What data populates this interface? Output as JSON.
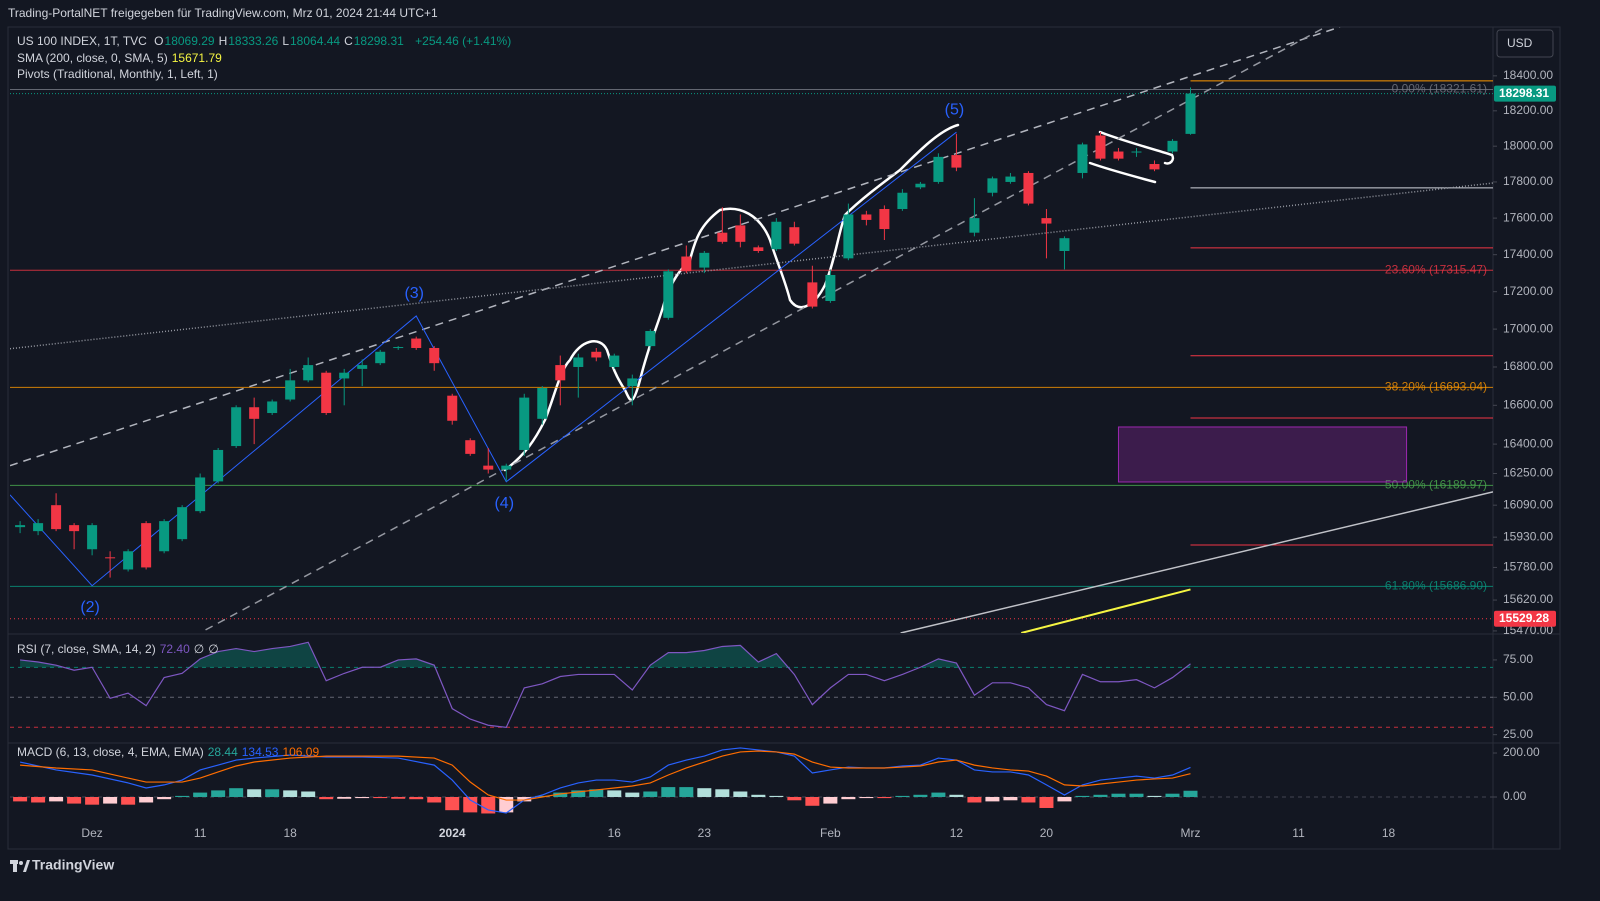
{
  "header": {
    "share": "Trading-PortalNET freigegeben für TradingView.com, Mrz 01, 2024 21:44 UTC+1",
    "logo": "TradingView",
    "currency": "USD"
  },
  "chart_data": [
    {
      "type": "candlestick",
      "title": "US 100 INDEX, 1T, TVC",
      "legend_values": [
        {
          "label": "O",
          "value": 18069.29
        },
        {
          "label": "H",
          "value": 18333.26
        },
        {
          "label": "L",
          "value": 18064.44
        },
        {
          "label": "C",
          "value": 18298.31
        }
      ],
      "change": "+254.46 (+1.41%)",
      "sma": {
        "title": "SMA (200, close, 0, SMA, 5)",
        "value": 15671.79,
        "color": "#f5f542",
        "points": [
          [
            55.6,
            15460
          ],
          [
            65,
            15671.79
          ]
        ]
      },
      "pivots_title": "Pivots (Traditional, Monthly, 1, Left, 1)",
      "up_color": "#089981",
      "down_color": "#f23645",
      "xlim": [
        -0.56,
        81.8
      ],
      "ylim": [
        15460,
        18683
      ],
      "log_scale": true,
      "yticks": [
        {
          "value": 18400,
          "label": "18400.00"
        },
        {
          "value": 18200,
          "label": "18200.00"
        },
        {
          "value": 18000,
          "label": "18000.00"
        },
        {
          "value": 17800,
          "label": "17800.00"
        },
        {
          "value": 17600,
          "label": "17600.00"
        },
        {
          "value": 17400,
          "label": "17400.00"
        },
        {
          "value": 17200,
          "label": "17200.00"
        },
        {
          "value": 17000,
          "label": "17000.00"
        },
        {
          "value": 16800,
          "label": "16800.00"
        },
        {
          "value": 16600,
          "label": "16600.00"
        },
        {
          "value": 16400,
          "label": "16400.00"
        },
        {
          "value": 16250,
          "label": "16250.00"
        },
        {
          "value": 16090,
          "label": "16090.00"
        },
        {
          "value": 15930,
          "label": "15930.00"
        },
        {
          "value": 15780,
          "label": "15780.00"
        },
        {
          "value": 15620,
          "label": "15620.00"
        },
        {
          "value": 15470,
          "label": "15470.00"
        }
      ],
      "xticks": [
        {
          "value": 4,
          "label": "Dez"
        },
        {
          "value": 10,
          "label": "11"
        },
        {
          "value": 15,
          "label": "18"
        },
        {
          "value": 24,
          "label": "2024"
        },
        {
          "value": 33,
          "label": "16"
        },
        {
          "value": 38,
          "label": "23"
        },
        {
          "value": 45,
          "label": "Feb"
        },
        {
          "value": 52,
          "label": "12"
        },
        {
          "value": 57,
          "label": "20"
        },
        {
          "value": 65,
          "label": "Mrz"
        },
        {
          "value": 71,
          "label": "11"
        },
        {
          "value": 76,
          "label": "18"
        }
      ],
      "ohlc": [
        [
          15980,
          16010,
          15950,
          15990
        ],
        [
          15960,
          16020,
          15940,
          16000
        ],
        [
          16090,
          16150,
          15960,
          15970
        ],
        [
          15990,
          16000,
          15870,
          15960
        ],
        [
          15870,
          16000,
          15840,
          15990
        ],
        [
          15830,
          15860,
          15730,
          15825
        ],
        [
          15770,
          15870,
          15760,
          15860
        ],
        [
          16000,
          16010,
          15770,
          15780
        ],
        [
          15860,
          16020,
          15850,
          16010
        ],
        [
          15920,
          16090,
          15910,
          16080
        ],
        [
          16060,
          16250,
          16050,
          16230
        ],
        [
          16210,
          16380,
          16200,
          16370
        ],
        [
          16390,
          16600,
          16380,
          16590
        ],
        [
          16590,
          16640,
          16400,
          16530
        ],
        [
          16560,
          16630,
          16550,
          16620
        ],
        [
          16630,
          16790,
          16620,
          16730
        ],
        [
          16730,
          16850,
          16720,
          16810
        ],
        [
          16770,
          16780,
          16550,
          16560
        ],
        [
          16740,
          16790,
          16600,
          16770
        ],
        [
          16790,
          16840,
          16700,
          16810
        ],
        [
          16820,
          16890,
          16810,
          16880
        ],
        [
          16900,
          16910,
          16890,
          16905
        ],
        [
          16950,
          16960,
          16890,
          16900
        ],
        [
          16900,
          16910,
          16780,
          16820
        ],
        [
          16650,
          16660,
          16500,
          16520
        ],
        [
          16420,
          16430,
          16340,
          16350
        ],
        [
          16290,
          16380,
          16250,
          16270
        ],
        [
          16270,
          16300,
          16210,
          16290
        ],
        [
          16370,
          16660,
          16340,
          16640
        ],
        [
          16530,
          16700,
          16500,
          16690
        ],
        [
          16810,
          16860,
          16600,
          16730
        ],
        [
          16800,
          16870,
          16640,
          16850
        ],
        [
          16880,
          16900,
          16830,
          16850
        ],
        [
          16800,
          16870,
          16790,
          16860
        ],
        [
          16700,
          16760,
          16600,
          16740
        ],
        [
          16910,
          17000,
          16890,
          16990
        ],
        [
          17060,
          17320,
          17050,
          17310
        ],
        [
          17390,
          17450,
          17300,
          17310
        ],
        [
          17330,
          17420,
          17300,
          17410
        ],
        [
          17520,
          17660,
          17460,
          17470
        ],
        [
          17560,
          17620,
          17440,
          17470
        ],
        [
          17440,
          17450,
          17410,
          17420
        ],
        [
          17430,
          17600,
          17420,
          17580
        ],
        [
          17550,
          17580,
          17450,
          17460
        ],
        [
          17250,
          17340,
          17110,
          17120
        ],
        [
          17150,
          17320,
          17140,
          17290
        ],
        [
          17380,
          17680,
          17370,
          17620
        ],
        [
          17620,
          17640,
          17560,
          17590
        ],
        [
          17650,
          17670,
          17480,
          17540
        ],
        [
          17650,
          17760,
          17640,
          17740
        ],
        [
          17770,
          17800,
          17760,
          17790
        ],
        [
          17800,
          17960,
          17790,
          17940
        ],
        [
          17950,
          18070,
          17860,
          17880
        ],
        [
          17520,
          17710,
          17500,
          17600
        ],
        [
          17740,
          17830,
          17720,
          17820
        ],
        [
          17800,
          17850,
          17790,
          17830
        ],
        [
          17850,
          17860,
          17670,
          17680
        ],
        [
          17600,
          17650,
          17380,
          17570
        ],
        [
          17420,
          17500,
          17320,
          17490
        ],
        [
          17850,
          18020,
          17820,
          18010
        ],
        [
          18060,
          18080,
          17920,
          17930
        ],
        [
          17970,
          17990,
          17920,
          17930
        ],
        [
          17965,
          17990,
          17940,
          17970
        ],
        [
          17900,
          17920,
          17860,
          17870
        ],
        [
          17970,
          18040,
          17960,
          18030
        ],
        [
          18069.29,
          18333.26,
          18064.44,
          18298.31
        ]
      ],
      "fib_levels": [
        {
          "label": "0.00% (18321.61)",
          "value": 18321.61,
          "color": "#787b86"
        },
        {
          "label": "23.60% (17315.47)",
          "value": 17315.47,
          "color": "#f23645"
        },
        {
          "label": "38.20% (16693.04)",
          "value": 16693.04,
          "color": "#ff9800"
        },
        {
          "label": "50.00% (16189.97)",
          "value": 16189.97,
          "color": "#4caf50"
        },
        {
          "label": "61.80% (15686.90)",
          "value": 15686.9,
          "color": "#089981"
        }
      ],
      "pivot_start": 65,
      "pivots": [
        {
          "value": 18371,
          "color": "#ff9800"
        },
        {
          "value": 17767,
          "color": "#d1d4dc"
        },
        {
          "value": 17437,
          "color": "#f23645"
        },
        {
          "value": 16859,
          "color": "#f23645"
        },
        {
          "value": 16534,
          "color": "#f23645"
        },
        {
          "value": 15891,
          "color": "#f23645"
        }
      ],
      "box": {
        "x": [
          61,
          77
        ],
        "y": [
          16207,
          16488
        ],
        "color": "#9c27b0"
      },
      "trendlines": [
        {
          "points": [
            [
              -0.56,
              16290
            ],
            [
              73.3,
              18683
            ]
          ],
          "color": "#b2b5be",
          "dash": "8 6"
        },
        {
          "points": [
            [
              10.3,
              15475
            ],
            [
              72.5,
              18683
            ]
          ],
          "color": "#9598a1",
          "dash": "8 6"
        },
        {
          "points": [
            [
              -0.56,
              16896
            ],
            [
              81.8,
              17794
            ]
          ],
          "color": "#9598a1",
          "dash": "1 2"
        },
        {
          "points": [
            [
              48.9,
              15460
            ],
            [
              81.8,
              16157
            ]
          ],
          "color": "#c0c2c8",
          "dash": "none"
        }
      ],
      "wave_points": [
        [
          -0.56,
          16142
        ],
        [
          4,
          15690
        ],
        [
          22,
          17070
        ],
        [
          27,
          16208
        ],
        [
          52,
          18079
        ]
      ],
      "wave_labels": [
        "(2)",
        "(3)",
        "(4)",
        "(5)"
      ],
      "wave_color": "#2962ff",
      "last_price": {
        "value": 18298.31,
        "color": "#089981"
      },
      "level_tag": {
        "value": 15529.28,
        "color": "#f23645"
      }
    },
    {
      "type": "line",
      "title": "RSI (7, close, SMA, 14, 2)",
      "readout": {
        "value": 72.4,
        "label": "72.40"
      },
      "extra": [
        "∅",
        "∅"
      ],
      "color": "#7e57c2",
      "ylim": [
        20.1,
        91
      ],
      "yticks": [
        {
          "value": 75,
          "label": "75.00"
        },
        {
          "value": 50,
          "label": "50.00"
        },
        {
          "value": 25,
          "label": "25.00"
        }
      ],
      "bands": [
        {
          "value": 70,
          "color": "#089981"
        },
        {
          "value": 50,
          "color": "#787b86"
        },
        {
          "value": 30,
          "color": "#f23645"
        }
      ],
      "values": [
        75,
        73.6,
        71.5,
        68.1,
        70.1,
        49.3,
        52.8,
        44.4,
        63.2,
        66,
        75.7,
        80.6,
        82.6,
        80.6,
        82.6,
        84,
        86.8,
        61.1,
        66,
        70.1,
        70.1,
        75,
        75.7,
        71.5,
        42.4,
        35.4,
        31.3,
        29.9,
        56.3,
        59,
        63.9,
        65.3,
        65.3,
        65.3,
        54.9,
        71.5,
        79.9,
        79.9,
        81.3,
        84,
        84.7,
        73.6,
        79.2,
        65.3,
        45.1,
        56.3,
        65.3,
        65.3,
        61.1,
        65.3,
        70.1,
        75.7,
        72.9,
        51.4,
        59.7,
        59.7,
        56.3,
        45.1,
        41,
        65.3,
        60.4,
        60.4,
        61.8,
        56.3,
        63.2,
        72.4
      ]
    },
    {
      "type": "macd",
      "title": "MACD (6, 13, close, 4, EMA, EMA)",
      "ylim": [
        -232,
        241
      ],
      "yticks": [
        {
          "value": 200,
          "label": "200.00"
        },
        {
          "value": 0,
          "label": "0.00"
        }
      ],
      "histogram": {
        "readout": 28.44,
        "colors": [
          "#26a69a",
          "#b2dfdb",
          "#ff5252",
          "#ffcdd2"
        ],
        "values": [
          -20,
          -25,
          -20,
          -30,
          -35,
          -30,
          -35,
          -25,
          -10,
          5,
          20,
          30,
          40,
          35,
          35,
          30,
          25,
          -10,
          -8,
          -5,
          -5,
          -8,
          -10,
          -25,
          -60,
          -70,
          -75,
          -70,
          -20,
          5,
          20,
          30,
          35,
          30,
          20,
          25,
          45,
          45,
          40,
          35,
          25,
          10,
          5,
          -15,
          -40,
          -30,
          -10,
          -5,
          -5,
          5,
          10,
          20,
          10,
          -25,
          -20,
          -15,
          -25,
          -50,
          -20,
          5,
          10,
          15,
          15,
          5,
          15,
          28.44
        ]
      },
      "x": [
        0,
        2,
        4,
        6,
        7,
        8,
        9,
        10,
        11,
        12,
        13,
        15,
        17,
        19,
        21,
        23,
        24,
        25,
        26,
        27,
        28,
        29,
        30,
        31,
        32,
        33,
        34,
        35,
        36,
        37,
        38,
        39,
        40,
        41,
        42,
        43,
        44,
        45,
        46,
        47,
        48,
        49,
        50,
        51,
        52,
        53,
        54,
        55,
        56,
        57,
        58,
        59,
        60,
        61,
        62,
        63,
        64,
        65
      ],
      "series": [
        {
          "name": "MACD",
          "color": "#2962ff",
          "readout": 134.53,
          "values": [
            159,
            123,
            100,
            64,
            41,
            55,
            77,
            123,
            145,
            168,
            177,
            191,
            182,
            182,
            177,
            145,
            77,
            -14,
            -59,
            -73,
            -14,
            9,
            41,
            64,
            77,
            77,
            68,
            91,
            145,
            168,
            186,
            214,
            223,
            214,
            205,
            186,
            109,
            123,
            136,
            132,
            132,
            141,
            145,
            177,
            168,
            123,
            114,
            114,
            100,
            55,
            9,
            55,
            77,
            86,
            95,
            86,
            100,
            134.53
          ]
        },
        {
          "name": "Signal",
          "color": "#ff6d00",
          "readout": 106.09,
          "values": [
            145,
            132,
            123,
            86,
            68,
            68,
            68,
            86,
            114,
            141,
            159,
            177,
            186,
            186,
            186,
            177,
            145,
            68,
            9,
            -14,
            -14,
            0,
            14,
            23,
            32,
            41,
            50,
            64,
            100,
            132,
            159,
            186,
            205,
            209,
            205,
            195,
            159,
            136,
            132,
            132,
            132,
            136,
            141,
            159,
            168,
            145,
            132,
            123,
            118,
            95,
            55,
            50,
            59,
            68,
            77,
            82,
            86,
            106.09
          ]
        }
      ]
    }
  ]
}
